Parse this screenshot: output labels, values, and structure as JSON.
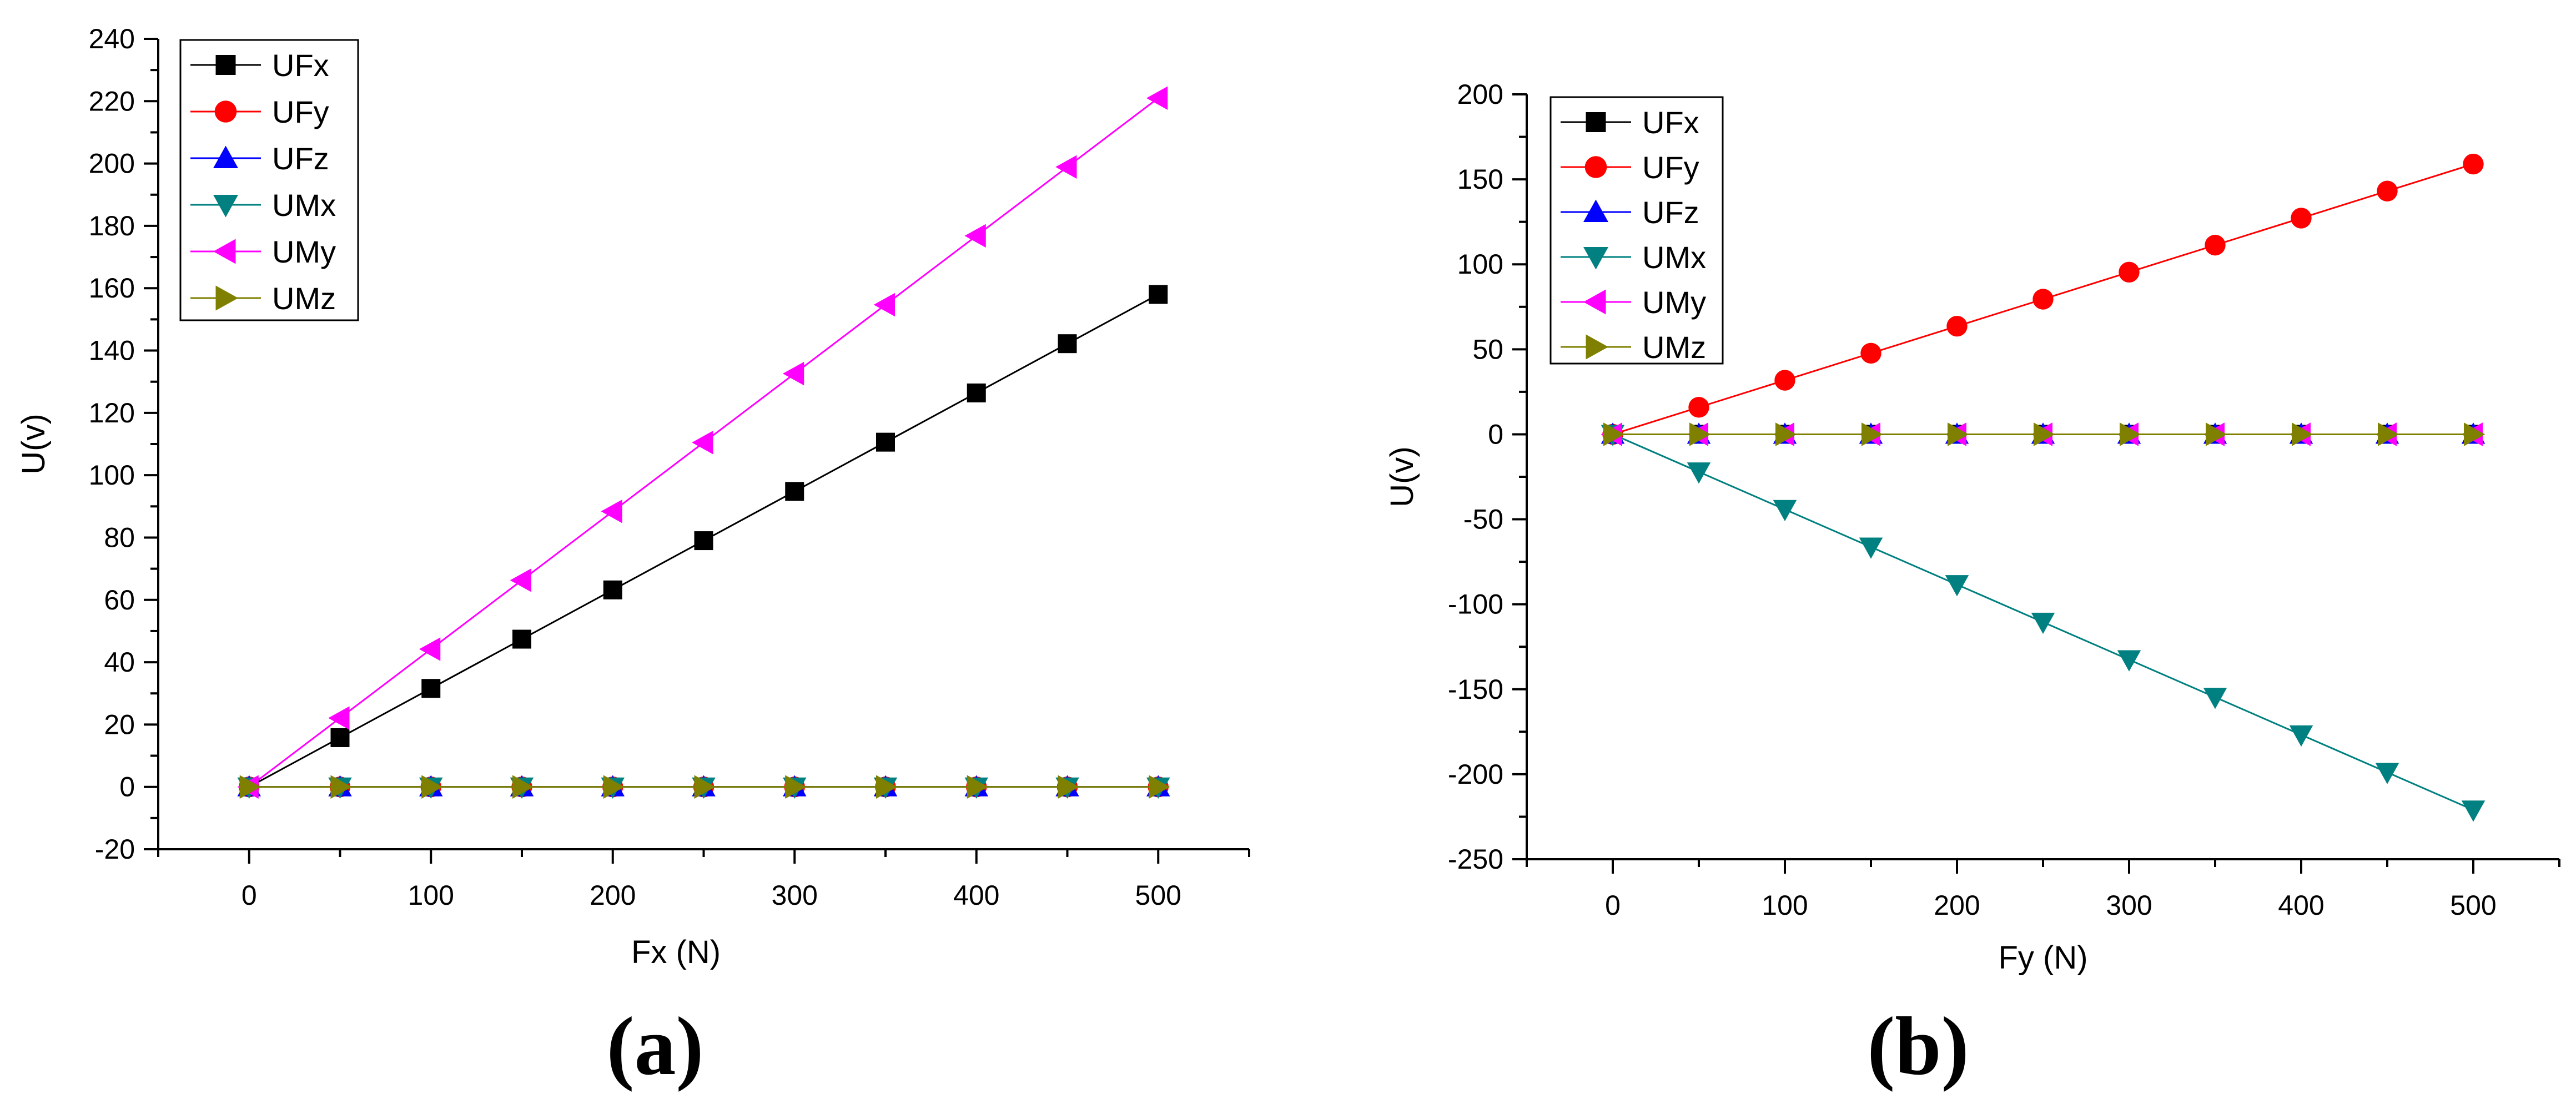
{
  "chart_data": [
    {
      "type": "line",
      "panel_label": "(a)",
      "xlabel": "Fx (N)",
      "ylabel": "U(v)",
      "xlim": [
        -50,
        550
      ],
      "ylim": [
        -20,
        240
      ],
      "xticks": [
        0,
        100,
        200,
        300,
        400,
        500
      ],
      "xticks_labeled": [
        "0",
        "100",
        "200",
        "300",
        "400",
        "500"
      ],
      "yticks": [
        -20,
        0,
        20,
        40,
        60,
        80,
        100,
        120,
        140,
        160,
        180,
        200,
        220,
        240
      ],
      "yticks_labeled": [
        "-20",
        "0",
        "20",
        "40",
        "60",
        "80",
        "100",
        "120",
        "140",
        "160",
        "180",
        "200",
        "220",
        "240"
      ],
      "grid": false,
      "legend_position": "top-left",
      "x": [
        0,
        50,
        100,
        150,
        200,
        250,
        300,
        350,
        400,
        450,
        500
      ],
      "series": [
        {
          "name": "UFx",
          "color": "#000000",
          "marker": "square",
          "values": [
            0,
            15.8,
            31.6,
            47.4,
            63.2,
            79.0,
            94.8,
            110.6,
            126.4,
            142.2,
            158.0
          ]
        },
        {
          "name": "UFy",
          "color": "#ff0000",
          "marker": "circle",
          "values": [
            0,
            0,
            0,
            0,
            0,
            0,
            0,
            0,
            0,
            0,
            0
          ]
        },
        {
          "name": "UFz",
          "color": "#0000ff",
          "marker": "triangle-up",
          "values": [
            0,
            0,
            0,
            0,
            0,
            0,
            0,
            0,
            0,
            0,
            0
          ]
        },
        {
          "name": "UMx",
          "color": "#008080",
          "marker": "triangle-down",
          "values": [
            0,
            0,
            0,
            0,
            0,
            0,
            0,
            0,
            0,
            0,
            0
          ]
        },
        {
          "name": "UMy",
          "color": "#ff00ff",
          "marker": "triangle-left",
          "values": [
            0,
            22.1,
            44.2,
            66.3,
            88.4,
            110.5,
            132.6,
            154.7,
            176.8,
            198.9,
            221.0
          ]
        },
        {
          "name": "UMz",
          "color": "#808000",
          "marker": "triangle-right",
          "values": [
            0,
            0,
            0,
            0,
            0,
            0,
            0,
            0,
            0,
            0,
            0
          ]
        }
      ]
    },
    {
      "type": "line",
      "panel_label": "(b)",
      "xlabel": "Fy (N)",
      "ylabel": "U(v)",
      "xlim": [
        -50,
        550
      ],
      "ylim": [
        -250,
        200
      ],
      "xticks": [
        0,
        100,
        200,
        300,
        400,
        500
      ],
      "xticks_labeled": [
        "0",
        "100",
        "200",
        "300",
        "400",
        "500"
      ],
      "yticks": [
        -250,
        -200,
        -150,
        -100,
        -50,
        0,
        50,
        100,
        150,
        200
      ],
      "yticks_labeled": [
        "-250",
        "-200",
        "-150",
        "-100",
        "-50",
        "0",
        "50",
        "100",
        "150",
        "200"
      ],
      "grid": false,
      "legend_position": "top-left",
      "x": [
        0,
        50,
        100,
        150,
        200,
        250,
        300,
        350,
        400,
        450,
        500
      ],
      "series": [
        {
          "name": "UFx",
          "color": "#000000",
          "marker": "square",
          "values": [
            0,
            0,
            0,
            0,
            0,
            0,
            0,
            0,
            0,
            0,
            0
          ]
        },
        {
          "name": "UFy",
          "color": "#ff0000",
          "marker": "circle",
          "values": [
            0,
            15.9,
            31.8,
            47.7,
            63.6,
            79.5,
            95.4,
            111.3,
            127.2,
            143.1,
            159.0
          ]
        },
        {
          "name": "UFz",
          "color": "#0000ff",
          "marker": "triangle-up",
          "values": [
            0,
            0,
            0,
            0,
            0,
            0,
            0,
            0,
            0,
            0,
            0
          ]
        },
        {
          "name": "UMx",
          "color": "#008080",
          "marker": "triangle-down",
          "values": [
            0,
            -22.1,
            -44.2,
            -66.3,
            -88.4,
            -110.5,
            -132.6,
            -154.7,
            -176.8,
            -198.9,
            -221.0
          ]
        },
        {
          "name": "UMy",
          "color": "#ff00ff",
          "marker": "triangle-left",
          "values": [
            0,
            0,
            0,
            0,
            0,
            0,
            0,
            0,
            0,
            0,
            0
          ]
        },
        {
          "name": "UMz",
          "color": "#808000",
          "marker": "triangle-right",
          "values": [
            0,
            0,
            0,
            0,
            0,
            0,
            0,
            0,
            0,
            0,
            0
          ]
        }
      ]
    }
  ]
}
